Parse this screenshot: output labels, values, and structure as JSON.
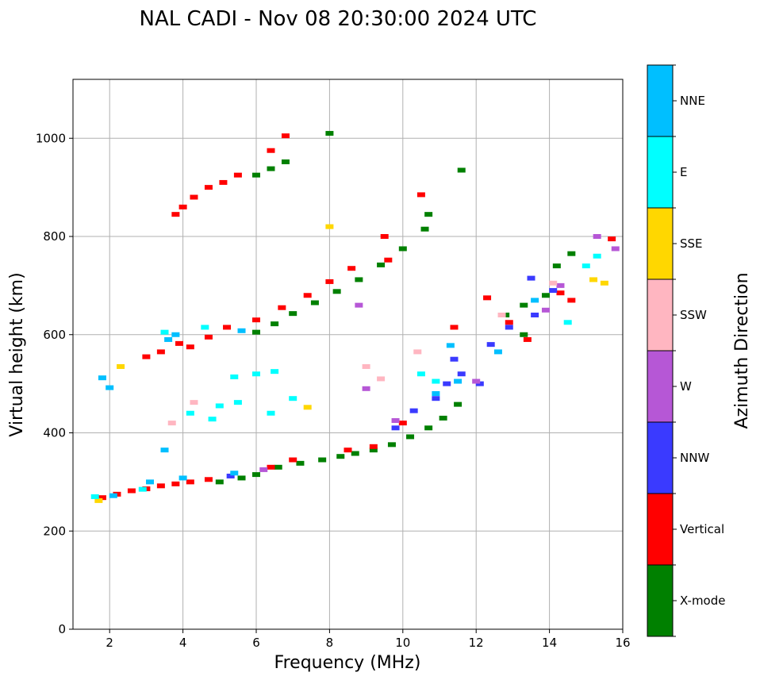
{
  "chart_data": {
    "type": "scatter",
    "title": "NAL CADI - Nov 08 20:30:00 2024 UTC",
    "xlabel": "Frequency (MHz)",
    "ylabel": "Virtual height (km)",
    "xlim": [
      1,
      16
    ],
    "ylim": [
      0,
      1120
    ],
    "xticks": [
      2,
      4,
      6,
      8,
      10,
      12,
      14,
      16
    ],
    "yticks": [
      0,
      200,
      400,
      600,
      800,
      1000
    ],
    "grid": true,
    "colorbar": {
      "label": "Azimuth Direction",
      "position": "right",
      "categories": [
        {
          "name": "X-mode",
          "color": "#008000"
        },
        {
          "name": "Vertical",
          "color": "#ff0000"
        },
        {
          "name": "NNW",
          "color": "#3a3aff"
        },
        {
          "name": "W",
          "color": "#b657d6"
        },
        {
          "name": "SSW",
          "color": "#ffb6c1"
        },
        {
          "name": "SSE",
          "color": "#ffd700"
        },
        {
          "name": "E",
          "color": "#00ffff"
        },
        {
          "name": "NNE",
          "color": "#00bfff"
        }
      ]
    },
    "series": [
      {
        "name": "X-mode",
        "points": [
          [
            5.0,
            300
          ],
          [
            5.6,
            308
          ],
          [
            6.0,
            315
          ],
          [
            6.6,
            330
          ],
          [
            7.2,
            338
          ],
          [
            7.8,
            345
          ],
          [
            8.3,
            352
          ],
          [
            8.7,
            358
          ],
          [
            9.2,
            365
          ],
          [
            9.7,
            376
          ],
          [
            10.2,
            392
          ],
          [
            10.7,
            410
          ],
          [
            11.1,
            430
          ],
          [
            11.5,
            458
          ],
          [
            6.0,
            605
          ],
          [
            6.5,
            622
          ],
          [
            7.0,
            643
          ],
          [
            7.6,
            665
          ],
          [
            8.2,
            688
          ],
          [
            8.8,
            712
          ],
          [
            9.4,
            742
          ],
          [
            10.0,
            775
          ],
          [
            10.6,
            815
          ],
          [
            10.7,
            845
          ],
          [
            6.0,
            925
          ],
          [
            6.4,
            938
          ],
          [
            6.8,
            952
          ],
          [
            8.0,
            1010
          ],
          [
            11.6,
            935
          ],
          [
            12.8,
            640
          ],
          [
            13.3,
            660
          ],
          [
            13.3,
            600
          ],
          [
            13.9,
            680
          ],
          [
            14.2,
            740
          ],
          [
            14.6,
            765
          ]
        ]
      },
      {
        "name": "Vertical",
        "points": [
          [
            1.8,
            268
          ],
          [
            2.2,
            275
          ],
          [
            2.6,
            282
          ],
          [
            3.0,
            286
          ],
          [
            3.4,
            292
          ],
          [
            3.8,
            296
          ],
          [
            4.2,
            300
          ],
          [
            4.7,
            305
          ],
          [
            6.4,
            330
          ],
          [
            7.0,
            345
          ],
          [
            8.5,
            365
          ],
          [
            9.2,
            372
          ],
          [
            10.0,
            420
          ],
          [
            3.0,
            555
          ],
          [
            3.4,
            565
          ],
          [
            3.9,
            582
          ],
          [
            4.2,
            575
          ],
          [
            4.7,
            595
          ],
          [
            5.2,
            615
          ],
          [
            6.0,
            630
          ],
          [
            6.7,
            655
          ],
          [
            7.4,
            680
          ],
          [
            8.0,
            708
          ],
          [
            8.6,
            735
          ],
          [
            9.6,
            752
          ],
          [
            9.5,
            800
          ],
          [
            10.5,
            885
          ],
          [
            3.8,
            845
          ],
          [
            4.0,
            860
          ],
          [
            4.3,
            880
          ],
          [
            4.7,
            900
          ],
          [
            5.1,
            910
          ],
          [
            5.5,
            925
          ],
          [
            6.4,
            975
          ],
          [
            6.8,
            1005
          ],
          [
            11.4,
            615
          ],
          [
            12.3,
            675
          ],
          [
            12.9,
            625
          ],
          [
            13.4,
            590
          ],
          [
            14.3,
            685
          ],
          [
            14.6,
            670
          ],
          [
            15.7,
            795
          ]
        ]
      },
      {
        "name": "NNW",
        "points": [
          [
            5.3,
            312
          ],
          [
            9.8,
            410
          ],
          [
            10.3,
            445
          ],
          [
            10.9,
            470
          ],
          [
            11.2,
            500
          ],
          [
            11.4,
            550
          ],
          [
            11.6,
            520
          ],
          [
            12.1,
            500
          ],
          [
            12.4,
            580
          ],
          [
            12.9,
            615
          ],
          [
            13.5,
            715
          ],
          [
            13.6,
            640
          ],
          [
            14.1,
            690
          ]
        ]
      },
      {
        "name": "W",
        "points": [
          [
            6.2,
            325
          ],
          [
            9.0,
            490
          ],
          [
            9.8,
            425
          ],
          [
            8.8,
            660
          ],
          [
            12.0,
            505
          ],
          [
            13.9,
            650
          ],
          [
            14.3,
            700
          ],
          [
            15.3,
            800
          ],
          [
            15.8,
            775
          ]
        ]
      },
      {
        "name": "SSW",
        "points": [
          [
            3.7,
            420
          ],
          [
            4.3,
            462
          ],
          [
            9.0,
            535
          ],
          [
            9.4,
            510
          ],
          [
            10.4,
            565
          ],
          [
            12.7,
            640
          ],
          [
            14.1,
            705
          ]
        ]
      },
      {
        "name": "SSE",
        "points": [
          [
            1.7,
            262
          ],
          [
            2.3,
            535
          ],
          [
            7.4,
            452
          ],
          [
            8.0,
            820
          ],
          [
            15.2,
            712
          ],
          [
            15.5,
            705
          ]
        ]
      },
      {
        "name": "E",
        "points": [
          [
            1.6,
            270
          ],
          [
            2.9,
            285
          ],
          [
            5.4,
            514
          ],
          [
            6.0,
            520
          ],
          [
            6.5,
            525
          ],
          [
            5.0,
            455
          ],
          [
            5.5,
            462
          ],
          [
            6.4,
            440
          ],
          [
            7.0,
            470
          ],
          [
            4.2,
            440
          ],
          [
            4.8,
            428
          ],
          [
            3.5,
            605
          ],
          [
            4.6,
            615
          ],
          [
            10.5,
            520
          ],
          [
            10.9,
            505
          ],
          [
            15.0,
            740
          ],
          [
            15.3,
            760
          ],
          [
            14.5,
            625
          ]
        ]
      },
      {
        "name": "NNE",
        "points": [
          [
            2.1,
            272
          ],
          [
            3.1,
            300
          ],
          [
            4.0,
            308
          ],
          [
            5.4,
            318
          ],
          [
            3.5,
            365
          ],
          [
            3.6,
            590
          ],
          [
            3.8,
            600
          ],
          [
            5.6,
            608
          ],
          [
            10.9,
            480
          ],
          [
            11.5,
            505
          ],
          [
            11.3,
            578
          ],
          [
            12.6,
            565
          ],
          [
            13.6,
            670
          ],
          [
            2.0,
            492
          ],
          [
            1.8,
            512
          ]
        ]
      }
    ]
  }
}
